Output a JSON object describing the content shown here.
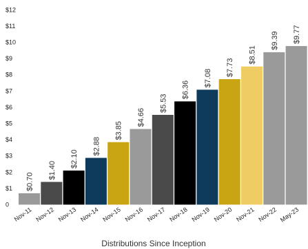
{
  "chart_data": {
    "type": "bar",
    "title": "",
    "xlabel": "Distributions Since Inception",
    "ylabel": "",
    "ylim": [
      0,
      12
    ],
    "yticks": [
      "0",
      "$1",
      "$2",
      "$3",
      "$4",
      "$5",
      "$6",
      "$7",
      "$8",
      "$9",
      "$10",
      "$11",
      "$12"
    ],
    "grid": false,
    "legend": "none",
    "categories": [
      "Nov-11",
      "Nov-12",
      "Nov-13",
      "Nov-14",
      "Nov-15",
      "Nov-16",
      "Nov-17",
      "Nov-18",
      "Nov-19",
      "Nov-20",
      "Nov-21",
      "Nov-22",
      "May-23"
    ],
    "values": [
      0.7,
      1.4,
      2.1,
      2.88,
      3.85,
      4.66,
      5.53,
      6.36,
      7.08,
      7.73,
      8.51,
      9.39,
      9.77
    ],
    "data_labels": [
      "$0.70",
      "$1.40",
      "$2.10",
      "$2.88",
      "$3.85",
      "$4.66",
      "$5.53",
      "$6.36",
      "$7.08",
      "$7.73",
      "$8.51",
      "$9.39",
      "$9.77"
    ],
    "colors": [
      "#9a9a9a",
      "#4a4a4a",
      "#000000",
      "#0e3a5c",
      "#c9a514",
      "#9a9a9a",
      "#4a4a4a",
      "#000000",
      "#0e3a5c",
      "#c9a514",
      "#f0cd62",
      "#9a9a9a",
      "#9a9a9a"
    ]
  }
}
